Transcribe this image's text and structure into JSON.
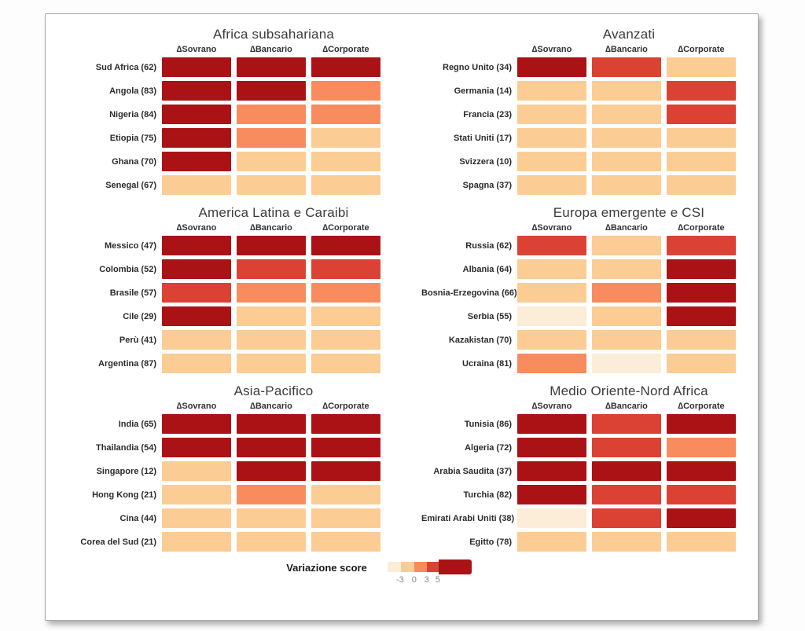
{
  "chart_data": {
    "type": "heatmap",
    "columns": [
      "∆Sovrano",
      "∆Bancario",
      "∆Corporate"
    ],
    "bins": [
      {
        "name": "cream",
        "range": "< -3",
        "color": "#FCEDD8"
      },
      {
        "name": "peach",
        "range": "-3 to 0",
        "color": "#FCCC95"
      },
      {
        "name": "salmon",
        "range": "0 to 3",
        "color": "#F88C5E"
      },
      {
        "name": "red",
        "range": "3 to 5",
        "color": "#DB4233"
      },
      {
        "name": "darkred",
        "range": "> 5",
        "color": "#AA1216"
      }
    ],
    "panels": [
      {
        "title": "Africa subsahariana",
        "rows": [
          {
            "label": "Sud Africa (62)",
            "cells": [
              "darkred",
              "darkred",
              "darkred"
            ]
          },
          {
            "label": "Angola (83)",
            "cells": [
              "darkred",
              "darkred",
              "salmon"
            ]
          },
          {
            "label": "Nigeria (84)",
            "cells": [
              "darkred",
              "salmon",
              "salmon"
            ]
          },
          {
            "label": "Etiopia (75)",
            "cells": [
              "darkred",
              "salmon",
              "peach"
            ]
          },
          {
            "label": "Ghana (70)",
            "cells": [
              "darkred",
              "peach",
              "peach"
            ]
          },
          {
            "label": "Senegal (67)",
            "cells": [
              "peach",
              "peach",
              "peach"
            ]
          }
        ]
      },
      {
        "title": "Avanzati",
        "rows": [
          {
            "label": "Regno Unito (34)",
            "cells": [
              "darkred",
              "red",
              "peach"
            ]
          },
          {
            "label": "Germania (14)",
            "cells": [
              "peach",
              "peach",
              "red"
            ]
          },
          {
            "label": "Francia (23)",
            "cells": [
              "peach",
              "peach",
              "red"
            ]
          },
          {
            "label": "Stati Uniti (17)",
            "cells": [
              "peach",
              "peach",
              "peach"
            ]
          },
          {
            "label": "Svizzera (10)",
            "cells": [
              "peach",
              "peach",
              "peach"
            ]
          },
          {
            "label": "Spagna (37)",
            "cells": [
              "peach",
              "peach",
              "peach"
            ]
          }
        ]
      },
      {
        "title": "America Latina e Caraibi",
        "rows": [
          {
            "label": "Messico (47)",
            "cells": [
              "darkred",
              "darkred",
              "darkred"
            ]
          },
          {
            "label": "Colombia (52)",
            "cells": [
              "darkred",
              "red",
              "red"
            ]
          },
          {
            "label": "Brasile (57)",
            "cells": [
              "red",
              "salmon",
              "salmon"
            ]
          },
          {
            "label": "Cile (29)",
            "cells": [
              "darkred",
              "peach",
              "peach"
            ]
          },
          {
            "label": "Perù (41)",
            "cells": [
              "peach",
              "peach",
              "peach"
            ]
          },
          {
            "label": "Argentina (87)",
            "cells": [
              "peach",
              "peach",
              "peach"
            ]
          }
        ]
      },
      {
        "title": "Europa emergente e CSI",
        "rows": [
          {
            "label": "Russia (62)",
            "cells": [
              "red",
              "peach",
              "red"
            ]
          },
          {
            "label": "Albania (64)",
            "cells": [
              "peach",
              "peach",
              "darkred"
            ]
          },
          {
            "label": "Bosnia-Erzegovina (66)",
            "cells": [
              "peach",
              "salmon",
              "darkred"
            ]
          },
          {
            "label": "Serbia (55)",
            "cells": [
              "cream",
              "peach",
              "darkred"
            ]
          },
          {
            "label": "Kazakistan (70)",
            "cells": [
              "peach",
              "peach",
              "peach"
            ]
          },
          {
            "label": "Ucraina (81)",
            "cells": [
              "salmon",
              "cream",
              "peach"
            ]
          }
        ]
      },
      {
        "title": "Asia-Pacifico",
        "rows": [
          {
            "label": "India (65)",
            "cells": [
              "darkred",
              "darkred",
              "darkred"
            ]
          },
          {
            "label": "Thailandia (54)",
            "cells": [
              "darkred",
              "darkred",
              "darkred"
            ]
          },
          {
            "label": "Singapore (12)",
            "cells": [
              "peach",
              "darkred",
              "darkred"
            ]
          },
          {
            "label": "Hong Kong (21)",
            "cells": [
              "peach",
              "salmon",
              "peach"
            ]
          },
          {
            "label": "Cina (44)",
            "cells": [
              "peach",
              "peach",
              "peach"
            ]
          },
          {
            "label": "Corea del Sud (21)",
            "cells": [
              "peach",
              "peach",
              "peach"
            ]
          }
        ]
      },
      {
        "title": "Medio Oriente-Nord Africa",
        "rows": [
          {
            "label": "Tunisia (86)",
            "cells": [
              "darkred",
              "red",
              "darkred"
            ]
          },
          {
            "label": "Algeria (72)",
            "cells": [
              "darkred",
              "red",
              "salmon"
            ]
          },
          {
            "label": "Arabia Saudita (37)",
            "cells": [
              "darkred",
              "darkred",
              "darkred"
            ]
          },
          {
            "label": "Turchia (82)",
            "cells": [
              "darkred",
              "red",
              "red"
            ]
          },
          {
            "label": "Emirati Arabi Uniti (38)",
            "cells": [
              "cream",
              "red",
              "darkred"
            ]
          },
          {
            "label": "Egitto (78)",
            "cells": [
              "peach",
              "peach",
              "peach"
            ]
          }
        ]
      }
    ],
    "legend": {
      "label": "Variazione score",
      "ticks": [
        "-3",
        "0",
        "3",
        "5"
      ],
      "segment_order": [
        "cream",
        "peach",
        "salmon",
        "red",
        "darkred"
      ]
    }
  }
}
